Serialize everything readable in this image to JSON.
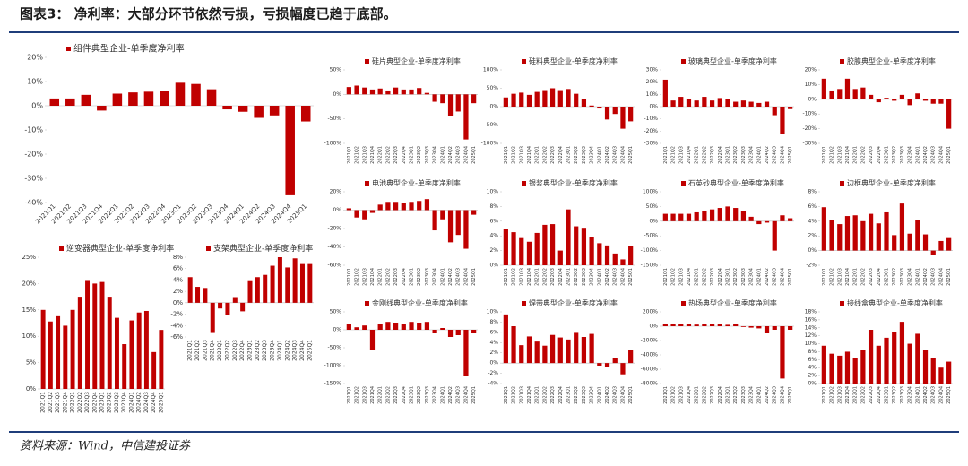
{
  "header": {
    "title": "图表3：  净利率：大部分环节依然亏损，亏损幅度已趋于底部。"
  },
  "footer": {
    "source": "资料来源：Wind，中信建投证券"
  },
  "chart_data": [
    {
      "type": "bar",
      "categories": [
        "2021Q1",
        "2021Q2",
        "2021Q3",
        "2021Q4",
        "2022Q1",
        "2022Q2",
        "2022Q3",
        "2022Q4",
        "2023Q1",
        "2023Q2",
        "2023Q3",
        "2023Q4",
        "2024Q1",
        "2024Q2",
        "2024Q3",
        "2024Q4",
        "2025Q1"
      ],
      "series": [
        {
          "name": "组件典型企业-单季度净利率",
          "color": "#c00000",
          "values": [
            3,
            3,
            4.5,
            -2,
            5,
            5.5,
            5.8,
            6,
            9.5,
            9,
            6.8,
            -1.5,
            -2.5,
            -5,
            -4,
            -37,
            -6.5
          ]
        }
      ],
      "ylim": [
        -40,
        20
      ],
      "yticks": [
        {
          "value": 20,
          "label": "20%"
        },
        {
          "value": 10,
          "label": "10%"
        },
        {
          "value": 0,
          "label": "0%"
        },
        {
          "value": -10,
          "label": "-10%"
        },
        {
          "value": -20,
          "label": "-20%"
        },
        {
          "value": -30,
          "label": "-30%"
        },
        {
          "value": -40,
          "label": "-40%"
        }
      ]
    },
    {
      "type": "bar",
      "categories": [
        "2021Q1",
        "2021Q2",
        "2021Q3",
        "2021Q4",
        "2022Q1",
        "2022Q2",
        "2022Q3",
        "2022Q4",
        "2023Q1",
        "2023Q2",
        "2023Q3",
        "2023Q4",
        "2024Q1",
        "2024Q2",
        "2024Q3",
        "2024Q4",
        "2025Q1"
      ],
      "series": [
        {
          "name": "逆变器典型企业-单季度净利率",
          "color": "#c00000",
          "values": [
            15,
            12.8,
            13.8,
            12,
            15,
            17.5,
            20.5,
            20,
            20.3,
            17.5,
            13.5,
            8.5,
            13,
            14.5,
            14.8,
            7,
            11.2
          ]
        }
      ],
      "ylim": [
        0,
        25
      ],
      "yticks": [
        {
          "value": 25,
          "label": "25%"
        },
        {
          "value": 20,
          "label": "20%"
        },
        {
          "value": 15,
          "label": "15%"
        },
        {
          "value": 10,
          "label": "10%"
        },
        {
          "value": 5,
          "label": "5%"
        },
        {
          "value": 0,
          "label": "0%"
        }
      ]
    },
    {
      "type": "bar",
      "categories": [
        "2021Q1",
        "2021Q2",
        "2021Q3",
        "2021Q4",
        "2022Q1",
        "2022Q2",
        "2022Q3",
        "2022Q4",
        "2023Q1",
        "2023Q2",
        "2023Q3",
        "2023Q4",
        "2024Q1",
        "2024Q2",
        "2024Q3",
        "2024Q4",
        "2025Q1"
      ],
      "series": [
        {
          "name": "支架典型企业-单季度净利率",
          "color": "#c00000",
          "values": [
            4.5,
            2.8,
            2.6,
            -5.3,
            -1,
            -2.2,
            1,
            -1.5,
            3.8,
            4.5,
            4.9,
            6.5,
            8,
            6.2,
            7.8,
            6.8,
            6.8
          ]
        }
      ],
      "ylim": [
        -6,
        8
      ],
      "yticks": [
        {
          "value": 8,
          "label": "8%"
        },
        {
          "value": 6,
          "label": "6%"
        },
        {
          "value": 4,
          "label": "4%"
        },
        {
          "value": 2,
          "label": "2%"
        },
        {
          "value": 0,
          "label": "0%"
        },
        {
          "value": -2,
          "label": "-2%"
        },
        {
          "value": -4,
          "label": "-4%"
        },
        {
          "value": -6,
          "label": "-6%"
        }
      ]
    },
    {
      "type": "bar",
      "categories": [
        "2021Q1",
        "2021Q2",
        "2021Q3",
        "2021Q4",
        "2022Q1",
        "2022Q2",
        "2022Q3",
        "2022Q4",
        "2023Q1",
        "2023Q2",
        "2023Q3",
        "2023Q4",
        "2024Q1",
        "2024Q2",
        "2024Q3",
        "2024Q4",
        "2025Q1"
      ],
      "series": [
        {
          "name": "硅片典型企业-单季度净利率",
          "color": "#c00000",
          "values": [
            15,
            18,
            14,
            10,
            12,
            8,
            14,
            10,
            10,
            13,
            3,
            -15,
            -18,
            -45,
            -35,
            -92,
            -18
          ]
        }
      ],
      "ylim": [
        -100,
        50
      ],
      "yticks": [
        {
          "value": 50,
          "label": "50%"
        },
        {
          "value": 0,
          "label": "0%"
        },
        {
          "value": -50,
          "label": "-50%"
        },
        {
          "value": -100,
          "label": "-100%"
        }
      ]
    },
    {
      "type": "bar",
      "categories": [
        "2021Q1",
        "2021Q2",
        "2021Q3",
        "2021Q4",
        "2022Q1",
        "2022Q2",
        "2022Q3",
        "2022Q4",
        "2023Q1",
        "2023Q2",
        "2023Q3",
        "2023Q4",
        "2024Q1",
        "2024Q2",
        "2024Q3",
        "2024Q4",
        "2025Q1"
      ],
      "series": [
        {
          "name": "硅料典型企业-单季度净利率",
          "color": "#c00000",
          "values": [
            25,
            35,
            38,
            32,
            40,
            45,
            50,
            45,
            48,
            35,
            20,
            3,
            -5,
            -35,
            -20,
            -60,
            -40
          ]
        }
      ],
      "ylim": [
        -100,
        100
      ],
      "yticks": [
        {
          "value": 100,
          "label": "100%"
        },
        {
          "value": 50,
          "label": "50%"
        },
        {
          "value": 0,
          "label": "0%"
        },
        {
          "value": -50,
          "label": "-50%"
        },
        {
          "value": -100,
          "label": "-100%"
        }
      ]
    },
    {
      "type": "bar",
      "categories": [
        "2021Q1",
        "2021Q2",
        "2021Q3",
        "2021Q4",
        "2022Q1",
        "2022Q2",
        "2022Q3",
        "2022Q4",
        "2023Q1",
        "2023Q2",
        "2023Q3",
        "2023Q4",
        "2024Q1",
        "2024Q2",
        "2024Q3",
        "2024Q4",
        "2025Q1"
      ],
      "series": [
        {
          "name": "玻璃典型企业-单季度净利率",
          "color": "#c00000",
          "values": [
            22,
            5,
            8,
            6,
            5,
            8,
            5,
            7,
            6,
            4,
            5,
            4,
            3,
            4,
            -7,
            -22,
            -2
          ]
        }
      ],
      "ylim": [
        -30,
        30
      ],
      "yticks": [
        {
          "value": 30,
          "label": "30%"
        },
        {
          "value": 20,
          "label": "20%"
        },
        {
          "value": 10,
          "label": "10%"
        },
        {
          "value": 0,
          "label": "0%"
        },
        {
          "value": -10,
          "label": "-10%"
        },
        {
          "value": -20,
          "label": "-20%"
        },
        {
          "value": -30,
          "label": "-30%"
        }
      ]
    },
    {
      "type": "bar",
      "categories": [
        "2021Q1",
        "2021Q2",
        "2021Q3",
        "2021Q4",
        "2022Q1",
        "2022Q2",
        "2022Q3",
        "2022Q4",
        "2023Q1",
        "2023Q2",
        "2023Q3",
        "2023Q4",
        "2024Q1",
        "2024Q2",
        "2024Q3",
        "2024Q4",
        "2025Q1"
      ],
      "series": [
        {
          "name": "胶膜典型企业-单季度净利率",
          "color": "#c00000",
          "values": [
            14,
            6,
            7,
            14,
            7,
            8,
            3,
            -2,
            1,
            -1,
            3,
            -4,
            4,
            -1,
            -3,
            -3,
            -20
          ]
        }
      ],
      "ylim": [
        -30,
        20
      ],
      "yticks": [
        {
          "value": 20,
          "label": "20%"
        },
        {
          "value": 10,
          "label": "10%"
        },
        {
          "value": 0,
          "label": "0%"
        },
        {
          "value": -10,
          "label": "-10%"
        },
        {
          "value": -20,
          "label": "-20%"
        },
        {
          "value": -30,
          "label": "-30%"
        }
      ]
    },
    {
      "type": "bar",
      "categories": [
        "2021Q1",
        "2021Q2",
        "2021Q3",
        "2021Q4",
        "2022Q1",
        "2022Q2",
        "2022Q3",
        "2022Q4",
        "2023Q1",
        "2023Q2",
        "2023Q3",
        "2023Q4",
        "2024Q1",
        "2024Q2",
        "2024Q3",
        "2024Q4",
        "2025Q1"
      ],
      "series": [
        {
          "name": "电池典型企业-单季度净利率",
          "color": "#c00000",
          "values": [
            2,
            -8,
            -10,
            -3,
            6,
            9,
            9,
            8,
            9,
            10,
            12,
            -22,
            -10,
            -35,
            -27,
            -42,
            -5
          ]
        }
      ],
      "ylim": [
        -60,
        20
      ],
      "yticks": [
        {
          "value": 20,
          "label": "20%"
        },
        {
          "value": 0,
          "label": "0%"
        },
        {
          "value": -20,
          "label": "-20%"
        },
        {
          "value": -40,
          "label": "-40%"
        },
        {
          "value": -60,
          "label": "-60%"
        }
      ]
    },
    {
      "type": "bar",
      "categories": [
        "2021Q1",
        "2021Q2",
        "2021Q3",
        "2021Q4",
        "2022Q1",
        "2022Q2",
        "2022Q3",
        "2022Q4",
        "2023Q1",
        "2023Q2",
        "2023Q3",
        "2023Q4",
        "2024Q1",
        "2024Q2",
        "2024Q3",
        "2024Q4",
        "2025Q1"
      ],
      "series": [
        {
          "name": "银浆典型企业-单季度净利率",
          "color": "#c00000",
          "values": [
            5,
            4.5,
            3.7,
            3.2,
            4.4,
            5.5,
            5.6,
            2,
            7.6,
            5.3,
            5.1,
            3.8,
            3,
            2.7,
            1.6,
            0.8,
            2.6
          ]
        }
      ],
      "ylim": [
        0,
        10
      ],
      "yticks": [
        {
          "value": 10,
          "label": "10%"
        },
        {
          "value": 8,
          "label": "8%"
        },
        {
          "value": 6,
          "label": "6%"
        },
        {
          "value": 4,
          "label": "4%"
        },
        {
          "value": 2,
          "label": "2%"
        },
        {
          "value": 0,
          "label": "0%"
        }
      ]
    },
    {
      "type": "bar",
      "categories": [
        "2021Q1",
        "2021Q2",
        "2021Q3",
        "2021Q4",
        "2022Q1",
        "2022Q2",
        "2022Q3",
        "2022Q4",
        "2023Q1",
        "2023Q2",
        "2023Q3",
        "2023Q4",
        "2024Q1",
        "2024Q2",
        "2024Q3",
        "2024Q4",
        "2025Q1"
      ],
      "series": [
        {
          "name": "石英砂典型企业-单季度净利率",
          "color": "#c00000",
          "values": [
            25,
            25,
            25,
            25,
            30,
            35,
            40,
            45,
            50,
            45,
            35,
            15,
            -10,
            -5,
            -100,
            20,
            10
          ]
        }
      ],
      "ylim": [
        -150,
        100
      ],
      "yticks": [
        {
          "value": 100,
          "label": "100%"
        },
        {
          "value": 50,
          "label": "50%"
        },
        {
          "value": 0,
          "label": "0%"
        },
        {
          "value": -50,
          "label": "-50%"
        },
        {
          "value": -100,
          "label": "-100%"
        },
        {
          "value": -150,
          "label": "-150%"
        }
      ]
    },
    {
      "type": "bar",
      "categories": [
        "2021Q1",
        "2021Q2",
        "2021Q3",
        "2021Q4",
        "2022Q1",
        "2022Q2",
        "2022Q3",
        "2022Q4",
        "2023Q1",
        "2023Q2",
        "2023Q3",
        "2023Q4",
        "2024Q1",
        "2024Q2",
        "2024Q3",
        "2024Q4",
        "2025Q1"
      ],
      "series": [
        {
          "name": "边框典型企业-单季度净利率",
          "color": "#c00000",
          "values": [
            5.9,
            4.2,
            3.6,
            4.7,
            4.8,
            4,
            5,
            3.7,
            5.2,
            2.1,
            6.4,
            2.3,
            4.2,
            2.2,
            -0.6,
            1.3,
            1.7
          ]
        }
      ],
      "ylim": [
        -2,
        8
      ],
      "yticks": [
        {
          "value": 8,
          "label": "8%"
        },
        {
          "value": 6,
          "label": "6%"
        },
        {
          "value": 4,
          "label": "4%"
        },
        {
          "value": 2,
          "label": "2%"
        },
        {
          "value": 0,
          "label": "0%"
        },
        {
          "value": -2,
          "label": "-2%"
        }
      ]
    },
    {
      "type": "bar",
      "categories": [
        "2021Q1",
        "2021Q2",
        "2021Q3",
        "2021Q4",
        "2022Q1",
        "2022Q2",
        "2022Q3",
        "2022Q4",
        "2023Q1",
        "2023Q2",
        "2023Q3",
        "2023Q4",
        "2024Q1",
        "2024Q2",
        "2024Q3",
        "2024Q4",
        "2025Q1"
      ],
      "series": [
        {
          "name": "金刚线典型企业-单季度净利率",
          "color": "#c00000",
          "values": [
            15,
            7,
            12,
            -55,
            15,
            22,
            20,
            17,
            22,
            20,
            22,
            -10,
            5,
            -20,
            -15,
            -130,
            -10
          ]
        }
      ],
      "ylim": [
        -150,
        50
      ],
      "yticks": [
        {
          "value": 50,
          "label": "50%"
        },
        {
          "value": 0,
          "label": "0%"
        },
        {
          "value": -50,
          "label": "-50%"
        },
        {
          "value": -100,
          "label": "-100%"
        },
        {
          "value": -150,
          "label": "-150%"
        }
      ]
    },
    {
      "type": "bar",
      "categories": [
        "2021Q1",
        "2021Q2",
        "2021Q3",
        "2021Q4",
        "2022Q1",
        "2022Q2",
        "2022Q3",
        "2022Q4",
        "2023Q1",
        "2023Q2",
        "2023Q3",
        "2023Q4",
        "2024Q1",
        "2024Q2",
        "2024Q3",
        "2024Q4",
        "2025Q1"
      ],
      "series": [
        {
          "name": "焊带典型企业-单季度净利率",
          "color": "#c00000",
          "values": [
            9.5,
            7.2,
            3.5,
            5.2,
            4.2,
            3.4,
            5.5,
            5,
            4.6,
            5.9,
            5.1,
            5.7,
            -0.5,
            -0.8,
            1,
            -2.2,
            2.5
          ]
        }
      ],
      "ylim": [
        -4,
        10
      ],
      "yticks": [
        {
          "value": 10,
          "label": "10%"
        },
        {
          "value": 8,
          "label": "8%"
        },
        {
          "value": 6,
          "label": "6%"
        },
        {
          "value": 4,
          "label": "4%"
        },
        {
          "value": 2,
          "label": "2%"
        },
        {
          "value": 0,
          "label": "0%"
        },
        {
          "value": -2,
          "label": "-2%"
        },
        {
          "value": -4,
          "label": "-4%"
        }
      ]
    },
    {
      "type": "bar",
      "categories": [
        "2021Q1",
        "2021Q2",
        "2021Q3",
        "2021Q4",
        "2022Q1",
        "2022Q2",
        "2022Q3",
        "2022Q4",
        "2023Q1",
        "2023Q2",
        "2023Q3",
        "2023Q4",
        "2024Q1",
        "2024Q2",
        "2024Q3",
        "2024Q4",
        "2025Q1"
      ],
      "series": [
        {
          "name": "热场典型企业-单季度净利率",
          "color": "#c00000",
          "values": [
            30,
            25,
            28,
            25,
            23,
            28,
            25,
            28,
            20,
            25,
            -10,
            -20,
            -30,
            -100,
            -50,
            -730,
            -50
          ]
        }
      ],
      "ylim": [
        -800,
        200
      ],
      "yticks": [
        {
          "value": 200,
          "label": "200%"
        },
        {
          "value": 0,
          "label": "0%"
        },
        {
          "value": -200,
          "label": "-200%"
        },
        {
          "value": -400,
          "label": "-400%"
        },
        {
          "value": -600,
          "label": "-600%"
        },
        {
          "value": -800,
          "label": "-800%"
        }
      ]
    },
    {
      "type": "bar",
      "categories": [
        "2021Q1",
        "2021Q2",
        "2021Q3",
        "2021Q4",
        "2022Q1",
        "2022Q2",
        "2022Q3",
        "2022Q4",
        "2023Q1",
        "2023Q2",
        "2023Q3",
        "2023Q4",
        "2024Q1",
        "2024Q2",
        "2024Q3",
        "2024Q4",
        "2025Q1"
      ],
      "series": [
        {
          "name": "接线盒典型企业-单季度净利率",
          "color": "#c00000",
          "values": [
            9.5,
            7.5,
            7,
            8,
            6.3,
            8.5,
            13.5,
            9.5,
            11.5,
            13,
            15.5,
            10,
            12.5,
            8.5,
            6.5,
            4,
            5.5
          ]
        }
      ],
      "ylim": [
        0,
        18
      ],
      "yticks": [
        {
          "value": 18,
          "label": "18%"
        },
        {
          "value": 16,
          "label": "16%"
        },
        {
          "value": 14,
          "label": "14%"
        },
        {
          "value": 12,
          "label": "12%"
        },
        {
          "value": 10,
          "label": "10%"
        },
        {
          "value": 8,
          "label": "8%"
        },
        {
          "value": 6,
          "label": "6%"
        },
        {
          "value": 4,
          "label": "4%"
        },
        {
          "value": 2,
          "label": "2%"
        },
        {
          "value": 0,
          "label": "0%"
        }
      ]
    }
  ]
}
